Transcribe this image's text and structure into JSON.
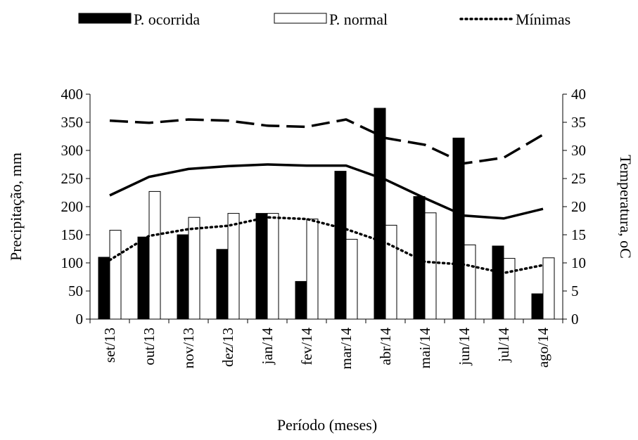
{
  "chart_data": {
    "type": "bar",
    "categories": [
      "set/13",
      "out/13",
      "nov/13",
      "dez/13",
      "jan/14",
      "fev/14",
      "mar/14",
      "abr/14",
      "mai/14",
      "jun/14",
      "jul/14",
      "ago/14"
    ],
    "xlabel": "Período (meses)",
    "ylabel": "Precipitação, mm",
    "y2label": "Temperatura, oC",
    "ylim": [
      0,
      400
    ],
    "y2lim": [
      0,
      40
    ],
    "yticks": [
      0,
      50,
      100,
      150,
      200,
      250,
      300,
      350,
      400
    ],
    "y2ticks": [
      0,
      5,
      10,
      15,
      20,
      25,
      30,
      35,
      40
    ],
    "series": [
      {
        "name": "P. ocorrida",
        "type": "bar",
        "axis": "left",
        "color": "#000000",
        "values": [
          110,
          146,
          150,
          124,
          188,
          67,
          263,
          375,
          218,
          322,
          130,
          45
        ]
      },
      {
        "name": "P. normal",
        "type": "bar",
        "axis": "left",
        "color": "#ffffff",
        "values": [
          158,
          227,
          181,
          188,
          188,
          178,
          142,
          167,
          189,
          132,
          108,
          109
        ]
      },
      {
        "name": "Mínimas",
        "type": "line",
        "axis": "right",
        "style": "dotted",
        "color": "#000000",
        "values": [
          10.5,
          14.8,
          16.0,
          16.6,
          18.1,
          17.8,
          16.0,
          13.6,
          10.2,
          9.7,
          8.2,
          9.6
        ]
      },
      {
        "type": "line",
        "axis": "right",
        "style": "solid",
        "color": "#000000",
        "values": [
          22.0,
          25.3,
          26.7,
          27.2,
          27.5,
          27.3,
          27.3,
          24.8,
          21.5,
          18.4,
          17.9,
          19.6
        ]
      },
      {
        "type": "line",
        "axis": "right",
        "style": "dashed",
        "color": "#000000",
        "values": [
          35.3,
          34.9,
          35.5,
          35.3,
          34.4,
          34.2,
          35.5,
          32.2,
          31.0,
          27.7,
          28.7,
          32.8
        ]
      }
    ],
    "legend_position": "top",
    "grid": false
  }
}
